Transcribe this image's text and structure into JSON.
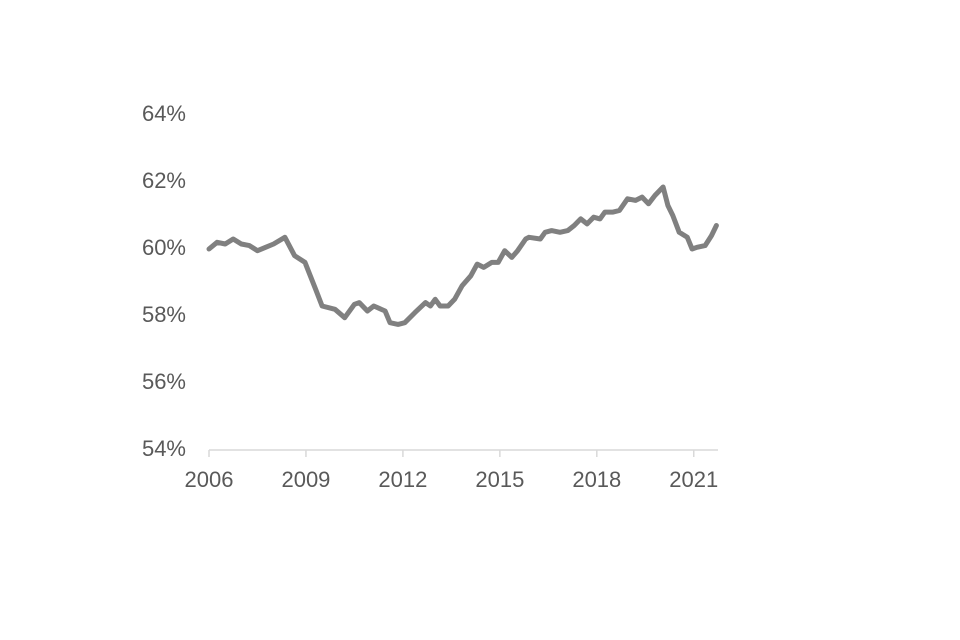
{
  "chart_data": {
    "type": "line",
    "x": [
      2006.0,
      2006.25,
      2006.5,
      2006.75,
      2007.0,
      2007.25,
      2007.5,
      2007.75,
      2008.0,
      2008.35,
      2008.65,
      2008.97,
      2009.3,
      2009.5,
      2009.9,
      2010.2,
      2010.5,
      2010.65,
      2010.9,
      2011.1,
      2011.45,
      2011.6,
      2011.85,
      2012.06,
      2012.37,
      2012.7,
      2012.85,
      2013.0,
      2013.15,
      2013.4,
      2013.6,
      2013.83,
      2014.1,
      2014.3,
      2014.5,
      2014.75,
      2014.95,
      2015.15,
      2015.37,
      2015.55,
      2015.8,
      2015.9,
      2016.25,
      2016.4,
      2016.6,
      2016.86,
      2017.1,
      2017.3,
      2017.5,
      2017.7,
      2017.9,
      2018.1,
      2018.25,
      2018.5,
      2018.7,
      2018.95,
      2019.2,
      2019.4,
      2019.6,
      2019.8,
      2020.05,
      2020.2,
      2020.35,
      2020.55,
      2020.8,
      2020.95,
      2021.1,
      2021.35,
      2021.55,
      2021.7
    ],
    "series": [
      {
        "color": "#808080",
        "values": [
          60.0,
          60.2,
          60.15,
          60.3,
          60.15,
          60.1,
          59.95,
          60.05,
          60.15,
          60.35,
          59.8,
          59.6,
          58.8,
          58.3,
          58.2,
          57.95,
          58.35,
          58.4,
          58.15,
          58.3,
          58.15,
          57.8,
          57.75,
          57.8,
          58.1,
          58.4,
          58.3,
          58.5,
          58.3,
          58.3,
          58.5,
          58.9,
          59.2,
          59.55,
          59.45,
          59.6,
          59.6,
          59.95,
          59.75,
          59.95,
          60.3,
          60.35,
          60.3,
          60.5,
          60.55,
          60.5,
          60.55,
          60.7,
          60.9,
          60.75,
          60.95,
          60.9,
          61.1,
          61.1,
          61.15,
          61.5,
          61.45,
          61.55,
          61.35,
          61.6,
          61.85,
          61.3,
          61.0,
          60.5,
          60.35,
          60.0,
          60.05,
          60.1,
          60.4,
          60.7
        ]
      }
    ],
    "xlim": [
      2006,
      2021.75
    ],
    "xticks": [
      2006,
      2009,
      2012,
      2015,
      2018,
      2021
    ],
    "ylim": [
      54,
      64
    ],
    "yticks": [
      {
        "value": 54,
        "label": "54%"
      },
      {
        "value": 56,
        "label": "56%"
      },
      {
        "value": 58,
        "label": "58%"
      },
      {
        "value": 60,
        "label": "60%"
      },
      {
        "value": 62,
        "label": "62%"
      },
      {
        "value": 64,
        "label": "64%"
      }
    ],
    "grid": false
  }
}
